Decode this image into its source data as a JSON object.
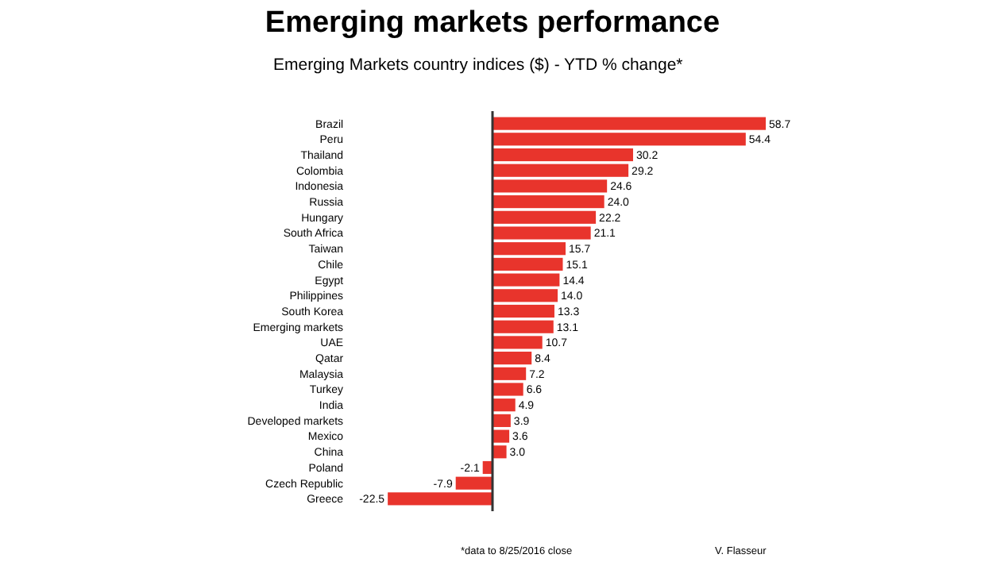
{
  "chart_data": {
    "type": "bar",
    "orientation": "horizontal",
    "title": "Emerging markets performance",
    "subtitle": "Emerging Markets country indices ($) - YTD % change*",
    "categories": [
      "Brazil",
      "Peru",
      "Thailand",
      "Colombia",
      "Indonesia",
      "Russia",
      "Hungary",
      "South Africa",
      "Taiwan",
      "Chile",
      "Egypt",
      "Philippines",
      "South Korea",
      "Emerging markets",
      "UAE",
      "Qatar",
      "Malaysia",
      "Turkey",
      "India",
      "Developed markets",
      "Mexico",
      "China",
      "Poland",
      "Czech Republic",
      "Greece"
    ],
    "values": [
      58.7,
      54.4,
      30.2,
      29.2,
      24.6,
      24.0,
      22.2,
      21.1,
      15.7,
      15.1,
      14.4,
      14.0,
      13.3,
      13.1,
      10.7,
      8.4,
      7.2,
      6.6,
      4.9,
      3.9,
      3.6,
      3.0,
      -2.1,
      -7.9,
      -22.5
    ],
    "value_labels": [
      "58.7",
      "54.4",
      "30.2",
      "29.2",
      "24.6",
      "24.0",
      "22.2",
      "21.1",
      "15.7",
      "15.1",
      "14.4",
      "14.0",
      "13.3",
      "13.1",
      "10.7",
      "8.4",
      "7.2",
      "6.6",
      "4.9",
      "3.9",
      "3.6",
      "3.0",
      "-2.1",
      "-7.9",
      "-22.5"
    ],
    "color": "#e8342c",
    "annotations": [
      "*data to 8/25/2016 close",
      "V. Flasseur"
    ]
  }
}
